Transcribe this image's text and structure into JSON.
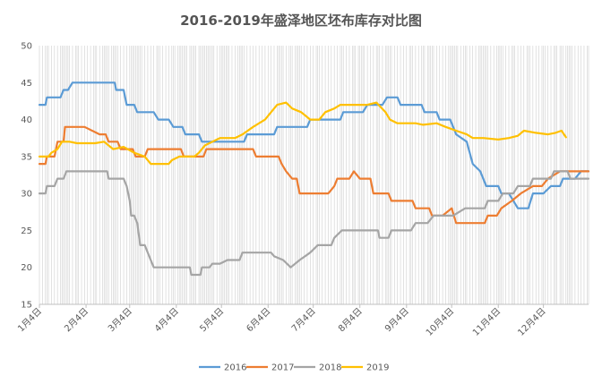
{
  "chart_data": {
    "type": "line",
    "title": "2016-2019年盛泽地区坯布库存对比图",
    "xlabel": "",
    "ylabel": "",
    "ylim": [
      15,
      50
    ],
    "yticks": [
      15,
      20,
      25,
      30,
      35,
      40,
      45,
      50
    ],
    "xlim": [
      0,
      365
    ],
    "x_ticks": [
      {
        "label": "1月4日",
        "x": 0
      },
      {
        "label": "2月4日",
        "x": 31
      },
      {
        "label": "3月4日",
        "x": 60
      },
      {
        "label": "4月4日",
        "x": 91
      },
      {
        "label": "5月4日",
        "x": 121
      },
      {
        "label": "6月4日",
        "x": 152
      },
      {
        "label": "7月4日",
        "x": 182
      },
      {
        "label": "8月4日",
        "x": 213
      },
      {
        "label": "9月4日",
        "x": 244
      },
      {
        "label": "10月4日",
        "x": 274
      },
      {
        "label": "11月4日",
        "x": 305
      },
      {
        "label": "12月4日",
        "x": 335
      }
    ],
    "grid": "vertical hairlines at each data date",
    "legend_position": "bottom",
    "series": [
      {
        "name": "2016",
        "color": "#5B9BD5",
        "points": [
          [
            0,
            42
          ],
          [
            4,
            42
          ],
          [
            5,
            43
          ],
          [
            14,
            43
          ],
          [
            16,
            44
          ],
          [
            19,
            44
          ],
          [
            22,
            45
          ],
          [
            50,
            45
          ],
          [
            51,
            44
          ],
          [
            56,
            44
          ],
          [
            58,
            42
          ],
          [
            63,
            42
          ],
          [
            65,
            41
          ],
          [
            76,
            41
          ],
          [
            79,
            40
          ],
          [
            86,
            40
          ],
          [
            89,
            39
          ],
          [
            95,
            39
          ],
          [
            97,
            38
          ],
          [
            106,
            38
          ],
          [
            108,
            37
          ],
          [
            121,
            37
          ],
          [
            123,
            37
          ],
          [
            136,
            37
          ],
          [
            138,
            38
          ],
          [
            156,
            38
          ],
          [
            158,
            39
          ],
          [
            178,
            39
          ],
          [
            180,
            40
          ],
          [
            200,
            40
          ],
          [
            202,
            41
          ],
          [
            215,
            41
          ],
          [
            218,
            42
          ],
          [
            228,
            42
          ],
          [
            231,
            43
          ],
          [
            238,
            43
          ],
          [
            240,
            42
          ],
          [
            250,
            42
          ],
          [
            254,
            42
          ],
          [
            256,
            41
          ],
          [
            264,
            41
          ],
          [
            266,
            40
          ],
          [
            273,
            40
          ],
          [
            277,
            38
          ],
          [
            284,
            37
          ],
          [
            288,
            34
          ],
          [
            293,
            33
          ],
          [
            297,
            31
          ],
          [
            305,
            31
          ],
          [
            307,
            30
          ],
          [
            312,
            30
          ],
          [
            318,
            28
          ],
          [
            325,
            28
          ],
          [
            328,
            30
          ],
          [
            335,
            30
          ],
          [
            340,
            31
          ],
          [
            346,
            31
          ],
          [
            348,
            32
          ],
          [
            356,
            32
          ],
          [
            360,
            33
          ],
          [
            365,
            33
          ]
        ]
      },
      {
        "name": "2017",
        "color": "#ED7D31",
        "points": [
          [
            0,
            34
          ],
          [
            4,
            34
          ],
          [
            5,
            35
          ],
          [
            10,
            35
          ],
          [
            12,
            37
          ],
          [
            16,
            37
          ],
          [
            17,
            39
          ],
          [
            30,
            39
          ],
          [
            40,
            38
          ],
          [
            44,
            38
          ],
          [
            46,
            37
          ],
          [
            52,
            37
          ],
          [
            54,
            36
          ],
          [
            62,
            36
          ],
          [
            64,
            35
          ],
          [
            70,
            35
          ],
          [
            72,
            36
          ],
          [
            94,
            36
          ],
          [
            96,
            35
          ],
          [
            109,
            35
          ],
          [
            111,
            36
          ],
          [
            142,
            36
          ],
          [
            144,
            35
          ],
          [
            159,
            35
          ],
          [
            161,
            34
          ],
          [
            164,
            33
          ],
          [
            168,
            32
          ],
          [
            171,
            32
          ],
          [
            173,
            30
          ],
          [
            192,
            30
          ],
          [
            196,
            31
          ],
          [
            198,
            32
          ],
          [
            206,
            32
          ],
          [
            209,
            33
          ],
          [
            213,
            32
          ],
          [
            220,
            32
          ],
          [
            222,
            30
          ],
          [
            232,
            30
          ],
          [
            234,
            29
          ],
          [
            248,
            29
          ],
          [
            250,
            28
          ],
          [
            259,
            28
          ],
          [
            261,
            27
          ],
          [
            268,
            27
          ],
          [
            274,
            28
          ],
          [
            277,
            26
          ],
          [
            296,
            26
          ],
          [
            298,
            27
          ],
          [
            304,
            27
          ],
          [
            307,
            28
          ],
          [
            314,
            29
          ],
          [
            320,
            30
          ],
          [
            328,
            31
          ],
          [
            334,
            31
          ],
          [
            338,
            32
          ],
          [
            346,
            33
          ],
          [
            365,
            33
          ]
        ]
      },
      {
        "name": "2018",
        "color": "#A5A5A5",
        "points": [
          [
            0,
            30
          ],
          [
            4,
            30
          ],
          [
            5,
            31
          ],
          [
            10,
            31
          ],
          [
            12,
            32
          ],
          [
            16,
            32
          ],
          [
            18,
            33
          ],
          [
            45,
            33
          ],
          [
            46,
            32
          ],
          [
            56,
            32
          ],
          [
            58,
            31
          ],
          [
            60,
            29
          ],
          [
            61,
            27
          ],
          [
            63,
            27
          ],
          [
            65,
            26
          ],
          [
            67,
            23
          ],
          [
            70,
            23
          ],
          [
            72,
            22
          ],
          [
            76,
            20
          ],
          [
            100,
            20
          ],
          [
            101,
            19
          ],
          [
            107,
            19
          ],
          [
            108,
            20
          ],
          [
            113,
            20
          ],
          [
            115,
            20.5
          ],
          [
            120,
            20.5
          ],
          [
            125,
            21
          ],
          [
            133,
            21
          ],
          [
            135,
            22
          ],
          [
            154,
            22
          ],
          [
            156,
            21.5
          ],
          [
            162,
            21
          ],
          [
            167,
            20
          ],
          [
            173,
            21
          ],
          [
            180,
            22
          ],
          [
            185,
            23
          ],
          [
            194,
            23
          ],
          [
            196,
            24
          ],
          [
            201,
            25
          ],
          [
            225,
            25
          ],
          [
            226,
            24
          ],
          [
            232,
            24
          ],
          [
            234,
            25
          ],
          [
            247,
            25
          ],
          [
            250,
            26
          ],
          [
            258,
            26
          ],
          [
            262,
            27
          ],
          [
            275,
            27
          ],
          [
            283,
            28
          ],
          [
            296,
            28
          ],
          [
            298,
            29
          ],
          [
            305,
            29
          ],
          [
            308,
            30
          ],
          [
            315,
            30
          ],
          [
            318,
            31
          ],
          [
            326,
            31
          ],
          [
            328,
            32
          ],
          [
            340,
            32
          ],
          [
            342,
            33
          ],
          [
            351,
            33
          ],
          [
            353,
            32
          ],
          [
            365,
            32
          ]
        ]
      },
      {
        "name": "2019",
        "color": "#FFC000",
        "points": [
          [
            0,
            35
          ],
          [
            6,
            35
          ],
          [
            8,
            35.5
          ],
          [
            12,
            36
          ],
          [
            15,
            37
          ],
          [
            20,
            37
          ],
          [
            25,
            36.8
          ],
          [
            37,
            36.8
          ],
          [
            43,
            37
          ],
          [
            49,
            36
          ],
          [
            56,
            36.3
          ],
          [
            63,
            35.5
          ],
          [
            70,
            35
          ],
          [
            74,
            34
          ],
          [
            86,
            34
          ],
          [
            88,
            34.5
          ],
          [
            93,
            35
          ],
          [
            103,
            35
          ],
          [
            106,
            35.5
          ],
          [
            110,
            36.5
          ],
          [
            115,
            37
          ],
          [
            120,
            37.5
          ],
          [
            130,
            37.5
          ],
          [
            135,
            38
          ],
          [
            142,
            39
          ],
          [
            150,
            40
          ],
          [
            154,
            41
          ],
          [
            158,
            42
          ],
          [
            164,
            42.3
          ],
          [
            168,
            41.5
          ],
          [
            174,
            41
          ],
          [
            180,
            40
          ],
          [
            186,
            40
          ],
          [
            190,
            41
          ],
          [
            196,
            41.5
          ],
          [
            200,
            42
          ],
          [
            218,
            42
          ],
          [
            224,
            42.3
          ],
          [
            230,
            41
          ],
          [
            233,
            40
          ],
          [
            238,
            39.5
          ],
          [
            250,
            39.5
          ],
          [
            255,
            39.3
          ],
          [
            264,
            39.5
          ],
          [
            270,
            39
          ],
          [
            277,
            38.5
          ],
          [
            284,
            38
          ],
          [
            288,
            37.5
          ],
          [
            295,
            37.5
          ],
          [
            305,
            37.3
          ],
          [
            312,
            37.5
          ],
          [
            318,
            37.8
          ],
          [
            322,
            38.5
          ],
          [
            330,
            38.2
          ],
          [
            338,
            38
          ],
          [
            343,
            38.2
          ],
          [
            347,
            38.5
          ],
          [
            350,
            37.6
          ]
        ]
      }
    ]
  }
}
